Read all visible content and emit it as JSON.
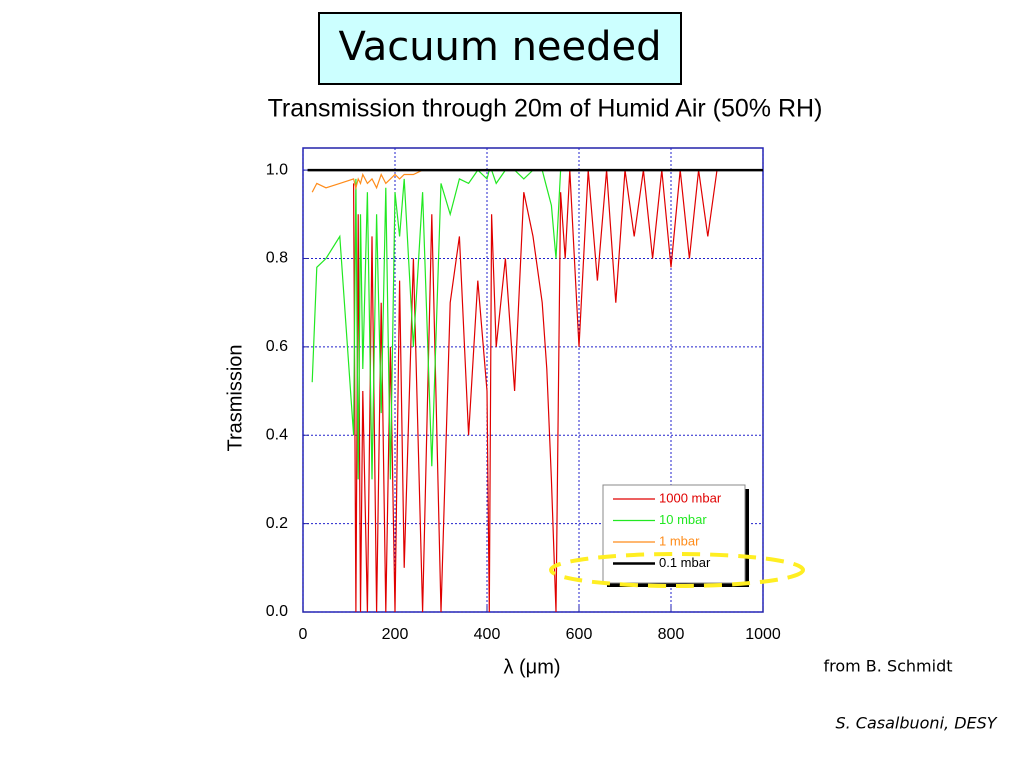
{
  "slide": {
    "title": "Vacuum needed",
    "credit": "from B. Schmidt",
    "footer": "S. Casalbuoni, DESY"
  },
  "chart_data": {
    "type": "line",
    "title": "Transmission through 20m of Humid Air (50% RH)",
    "x_label": "λ (μm)",
    "y_label": "Trasmission",
    "xlim": [
      0,
      1000
    ],
    "ylim": [
      0,
      1.05
    ],
    "xticks": [
      0,
      200,
      400,
      600,
      800,
      1000
    ],
    "yticks": [
      {
        "value": 0,
        "label": "0.0"
      },
      0.2,
      0.4,
      0.6,
      0.8,
      {
        "value": 1,
        "label": "1.0"
      }
    ],
    "grid": true,
    "legend": "lower right",
    "x": [
      10,
      20,
      30,
      50,
      80,
      110,
      115,
      120,
      125,
      130,
      140,
      150,
      160,
      170,
      180,
      190,
      200,
      210,
      220,
      240,
      260,
      280,
      300,
      320,
      340,
      360,
      380,
      400,
      405,
      410,
      420,
      440,
      460,
      480,
      500,
      520,
      530,
      540,
      550,
      560,
      570,
      580,
      600,
      620,
      640,
      660,
      680,
      700,
      720,
      740,
      760,
      780,
      800,
      820,
      840,
      860,
      880,
      900,
      950,
      1000
    ],
    "series": [
      {
        "name": "1000 mbar",
        "color": "#e00000",
        "values": [
          null,
          null,
          null,
          null,
          null,
          0.97,
          0,
          0.9,
          0,
          0.5,
          0,
          0.85,
          0,
          0.7,
          0,
          0.6,
          0,
          0.75,
          0.1,
          0.8,
          0,
          0.9,
          0,
          0.7,
          0.85,
          0.4,
          0.75,
          0.5,
          0,
          0.9,
          0.6,
          0.8,
          0.5,
          0.95,
          0.85,
          0.7,
          0.55,
          0.3,
          0,
          0.95,
          0.8,
          1,
          0.6,
          1,
          0.75,
          1,
          0.7,
          1,
          0.85,
          1,
          0.8,
          1,
          0.78,
          1,
          0.8,
          1,
          0.85,
          1,
          1,
          1
        ]
      },
      {
        "name": "10 mbar",
        "color": "#22e822",
        "values": [
          null,
          0.52,
          0.78,
          0.8,
          0.85,
          0.4,
          0.98,
          0.3,
          0.9,
          0.55,
          0.95,
          0.3,
          0.9,
          0.45,
          0.96,
          0.3,
          0.95,
          0.85,
          0.98,
          0.6,
          0.95,
          0.33,
          0.97,
          0.9,
          0.98,
          0.97,
          1,
          0.98,
          1,
          1,
          0.97,
          1,
          1,
          0.98,
          1,
          1,
          0.96,
          0.92,
          0.8,
          1,
          1,
          1,
          1,
          1,
          1,
          1,
          1,
          1,
          1,
          1,
          1,
          1,
          1,
          1,
          1,
          1,
          1,
          1,
          1,
          1
        ]
      },
      {
        "name": "1 mbar",
        "color": "#ff8c1a",
        "values": [
          null,
          0.95,
          0.97,
          0.96,
          0.97,
          0.98,
          0.96,
          0.98,
          0.97,
          0.99,
          0.97,
          0.98,
          0.96,
          0.99,
          0.97,
          0.98,
          0.99,
          0.98,
          0.99,
          0.99,
          1,
          1,
          1,
          1,
          1,
          1,
          1,
          1,
          1,
          1,
          1,
          1,
          1,
          1,
          1,
          1,
          1,
          1,
          1,
          1,
          1,
          1,
          1,
          1,
          1,
          1,
          1,
          1,
          1,
          1,
          1,
          1,
          1,
          1,
          1,
          1,
          1,
          1,
          1,
          1
        ]
      },
      {
        "name": "0.1 mbar",
        "color": "#000000",
        "values": [
          1,
          1,
          1,
          1,
          1,
          1,
          1,
          1,
          1,
          1,
          1,
          1,
          1,
          1,
          1,
          1,
          1,
          1,
          1,
          1,
          1,
          1,
          1,
          1,
          1,
          1,
          1,
          1,
          1,
          1,
          1,
          1,
          1,
          1,
          1,
          1,
          1,
          1,
          1,
          1,
          1,
          1,
          1,
          1,
          1,
          1,
          1,
          1,
          1,
          1,
          1,
          1,
          1,
          1,
          1,
          1,
          1,
          1,
          1,
          1
        ]
      }
    ]
  }
}
